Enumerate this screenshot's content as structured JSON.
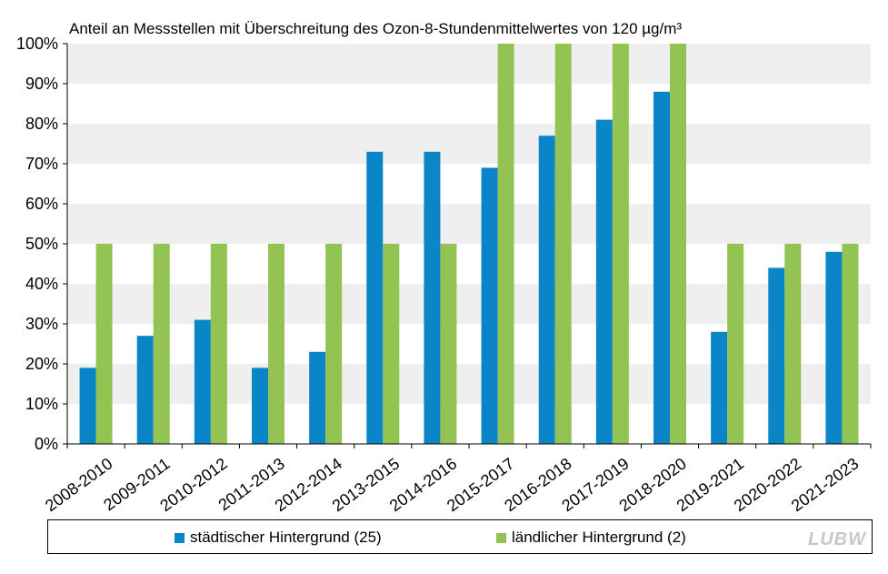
{
  "chart_data": {
    "type": "bar",
    "title": "Anteil an Messstellen mit Überschreitung  des Ozon-8-Stundenmittelwertes  von 120 µg/m³",
    "categories": [
      "2008-2010",
      "2009-2011",
      "2010-2012",
      "2011-2013",
      "2012-2014",
      "2013-2015",
      "2014-2016",
      "2015-2017",
      "2016-2018",
      "2017-2019",
      "2018-2020",
      "2019-2021",
      "2020-2022",
      "2021-2023"
    ],
    "series": [
      {
        "name": "städtischer Hintergrund (25)",
        "color": "#0a86c8",
        "values": [
          19,
          27,
          31,
          19,
          23,
          73,
          73,
          69,
          77,
          81,
          88,
          28,
          44,
          48
        ]
      },
      {
        "name": "ländlicher Hintergrund (2)",
        "color": "#92c353",
        "values": [
          50,
          50,
          50,
          50,
          50,
          50,
          50,
          100,
          100,
          100,
          100,
          50,
          50,
          50
        ]
      }
    ],
    "yticks": [
      "0%",
      "10%",
      "20%",
      "30%",
      "40%",
      "50%",
      "60%",
      "70%",
      "80%",
      "90%",
      "100%"
    ],
    "ylim": [
      0,
      100
    ],
    "grid": "horizontal bands",
    "legend": "bottom"
  },
  "logo_text": "LUBW"
}
